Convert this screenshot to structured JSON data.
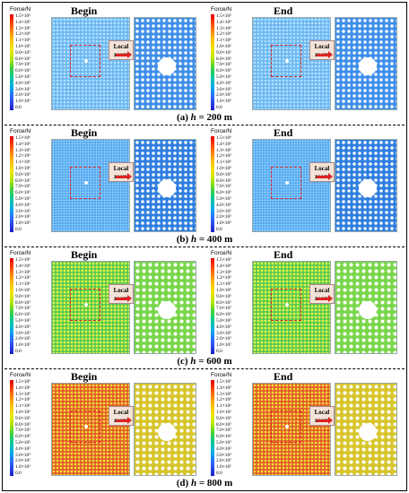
{
  "legend": {
    "title": "Force/N",
    "ticks": [
      "1.5×10⁶",
      "1.4×10⁶",
      "1.3×10⁶",
      "1.2×10⁶",
      "1.1×10⁶",
      "1.0×10⁶",
      "9.0×10⁵",
      "8.0×10⁵",
      "7.0×10⁵",
      "6.0×10⁵",
      "5.0×10⁵",
      "4.0×10⁵",
      "3.0×10⁵",
      "2.0×10⁵",
      "1.0×10⁵",
      "0.0"
    ]
  },
  "states": {
    "begin": "Begin",
    "end": "End"
  },
  "callout": {
    "line1": "Local",
    "line2": "zoom"
  },
  "panels": [
    {
      "caption_prefix": "(a) ",
      "caption_var": "h",
      "caption_value": " = 200 m",
      "intensity": "low"
    },
    {
      "caption_prefix": "(b) ",
      "caption_var": "h",
      "caption_value": " = 400 m",
      "intensity": "mid"
    },
    {
      "caption_prefix": "(c) ",
      "caption_var": "h",
      "caption_value": " = 600 m",
      "intensity": "high"
    },
    {
      "caption_prefix": "(d) ",
      "caption_var": "h",
      "caption_value": " = 800 m",
      "intensity": "vhigh"
    }
  ]
}
